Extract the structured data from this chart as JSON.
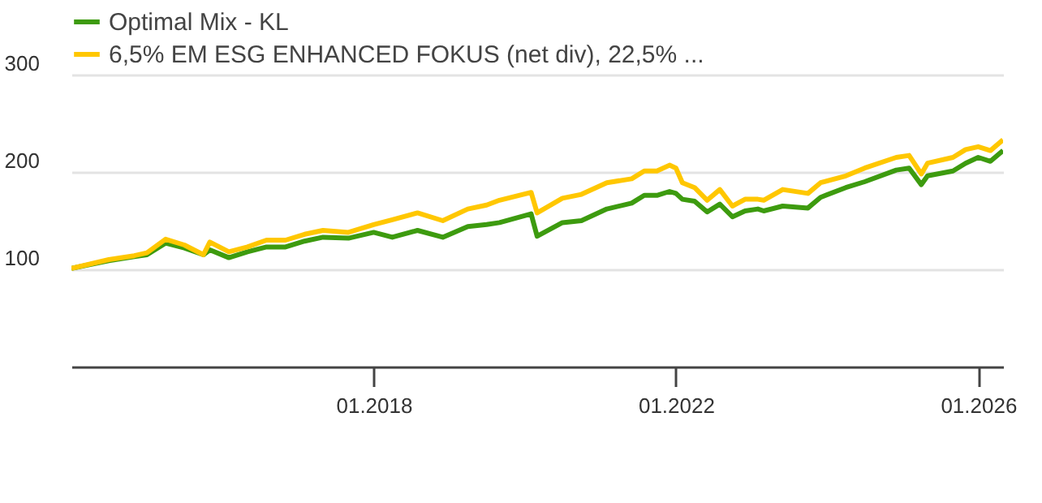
{
  "chart_data": {
    "type": "line",
    "x": [
      "2014-01",
      "2014-07",
      "2014-11",
      "2015-01",
      "2015-04",
      "2015-07",
      "2015-10",
      "2015-11",
      "2016-02",
      "2016-05",
      "2016-08",
      "2016-11",
      "2017-02",
      "2017-05",
      "2017-09",
      "2018-01",
      "2018-04",
      "2018-08",
      "2018-12",
      "2019-04",
      "2019-07",
      "2019-09",
      "2020-02",
      "2020-03",
      "2020-07",
      "2020-10",
      "2021-02",
      "2021-06",
      "2021-08",
      "2021-10",
      "2021-12",
      "2022-01",
      "2022-02",
      "2022-04",
      "2022-06",
      "2022-08",
      "2022-10",
      "2022-12",
      "2023-02",
      "2023-03",
      "2023-06",
      "2023-10",
      "2023-12",
      "2024-04",
      "2024-07",
      "2024-12",
      "2025-02",
      "2025-04",
      "2025-05",
      "2025-09",
      "2025-11",
      "2026-01",
      "2026-03",
      "2026-05"
    ],
    "series": [
      {
        "name": "Optimal Mix - KL",
        "color": "#3d9b0f",
        "values": [
          101,
          109,
          113,
          115,
          127,
          122,
          115,
          120,
          112,
          118,
          123,
          123,
          129,
          133,
          132,
          138,
          133,
          140,
          133,
          144,
          146,
          148,
          157,
          134,
          148,
          150,
          162,
          168,
          176,
          176,
          180,
          178,
          172,
          170,
          159,
          167,
          154,
          160,
          162,
          160,
          165,
          163,
          174,
          184,
          190,
          202,
          204,
          187,
          196,
          201,
          209,
          215,
          211,
          222
        ]
      },
      {
        "name": "6,5% EM ESG ENHANCED FOKUS (net div), 22,5% ...",
        "color": "#ffc700",
        "values": [
          101,
          110,
          114,
          117,
          131,
          125,
          115,
          128,
          118,
          123,
          130,
          130,
          136,
          140,
          138,
          146,
          151,
          158,
          150,
          162,
          166,
          171,
          179,
          158,
          173,
          177,
          189,
          193,
          201,
          201,
          207,
          204,
          189,
          184,
          171,
          182,
          165,
          172,
          172,
          171,
          182,
          178,
          189,
          196,
          204,
          215,
          217,
          198,
          209,
          215,
          223,
          226,
          222,
          233
        ]
      }
    ],
    "xlim": [
      "2014-01",
      "2026-05"
    ],
    "xticks": [
      {
        "value": "2018-01",
        "label": "01.2018"
      },
      {
        "value": "2022-01",
        "label": "01.2022"
      },
      {
        "value": "2026-01",
        "label": "01.2026"
      }
    ],
    "ylim": [
      0,
      300
    ],
    "yticks": [
      100,
      200,
      300
    ],
    "grid": "y",
    "legend": "top left",
    "marker": "none",
    "line_style": "solid"
  }
}
